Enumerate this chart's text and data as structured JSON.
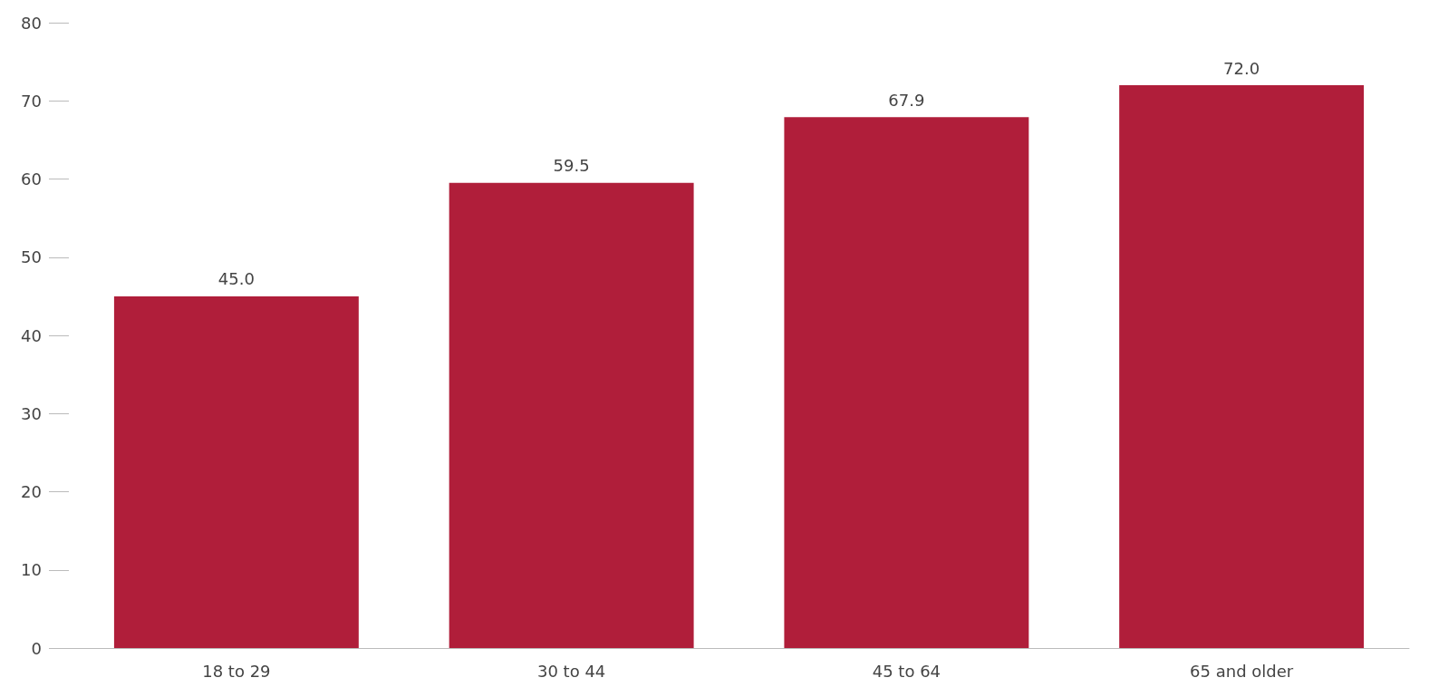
{
  "chart_data": {
    "type": "bar",
    "categories": [
      "18 to 29",
      "30 to 44",
      "45 to 64",
      "65 and older"
    ],
    "values": [
      45.0,
      59.5,
      67.9,
      72.0
    ],
    "value_labels": [
      "45.0",
      "59.5",
      "67.9",
      "72.0"
    ],
    "color": "#b01e3a",
    "ylim": [
      0,
      80
    ],
    "yticks": [
      0,
      10,
      20,
      30,
      40,
      50,
      60,
      70,
      80
    ],
    "grid": false
  }
}
